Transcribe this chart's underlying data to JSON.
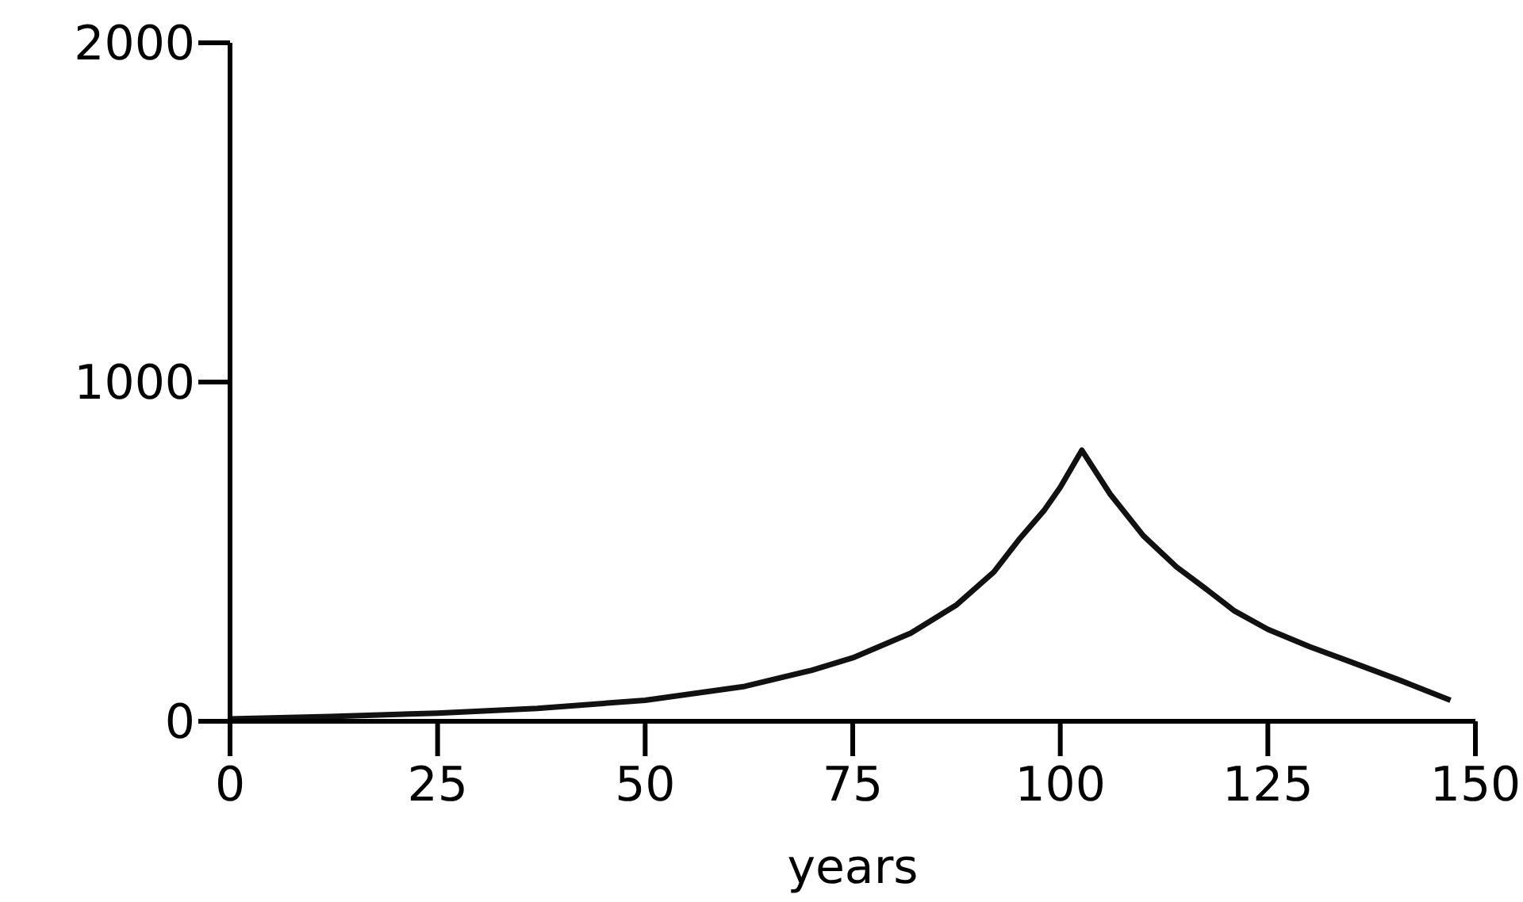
{
  "chart_data": {
    "type": "line",
    "xlabel": "years",
    "x": [
      0,
      12,
      25,
      37,
      50,
      62,
      70,
      75,
      82,
      87.5,
      92,
      95,
      98,
      100,
      102.6,
      106,
      110,
      114,
      117.5,
      121,
      125,
      130,
      135,
      141,
      147
    ],
    "series": [
      {
        "color": "#111111",
        "values": [
          7,
          14,
          24,
          38,
          62,
          103,
          150,
          187,
          260,
          343,
          440,
          535,
          620,
          690,
          799,
          670,
          547,
          455,
          391,
          325,
          271,
          220,
          175,
          120,
          62
        ]
      }
    ],
    "xlim": [
      0,
      150
    ],
    "xticks": [
      0,
      25,
      50,
      75,
      100,
      125,
      150
    ],
    "ylim": [
      0,
      2000
    ],
    "yticks": [
      0,
      1000,
      2000
    ],
    "grid": false,
    "marker": "none",
    "line_style": "solid"
  }
}
